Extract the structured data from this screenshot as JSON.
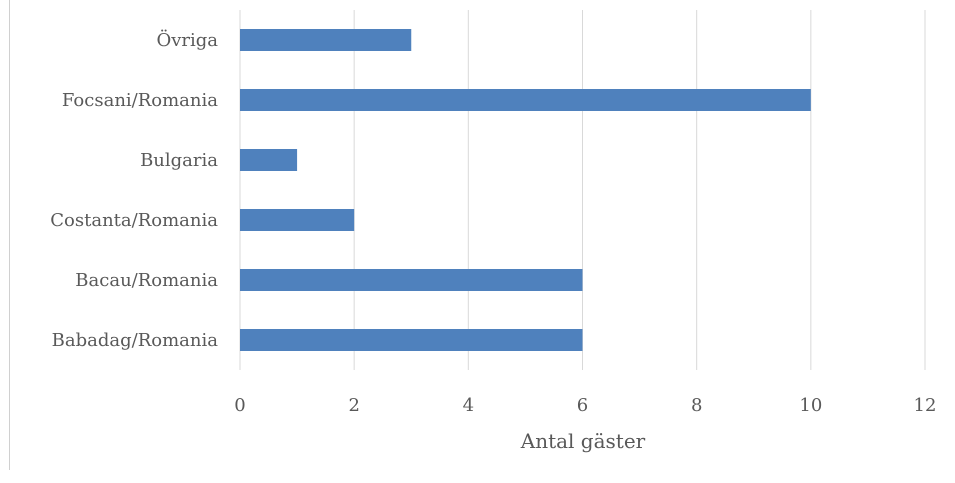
{
  "chart_data": {
    "type": "bar",
    "orientation": "horizontal",
    "title": "",
    "xlabel": "Antal gäster",
    "ylabel": "",
    "xlim": [
      0,
      12
    ],
    "xticks": [
      "0",
      "2",
      "4",
      "6",
      "8",
      "10",
      "12"
    ],
    "categories": [
      "Övriga",
      "Focsani/Romania",
      "Bulgaria",
      "Costanta/Romania",
      "Bacau/Romania",
      "Babadag/Romania"
    ],
    "values": [
      3,
      10,
      1,
      2,
      6,
      6
    ],
    "bar_color": "#4f81bd",
    "grid": "vertical",
    "legend": "none"
  }
}
